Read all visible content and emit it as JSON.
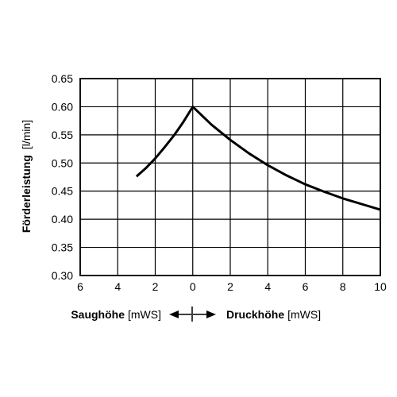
{
  "chart_data": {
    "type": "line",
    "ylabel_main": "Förderleistung",
    "ylabel_unit": "[l/min]",
    "ylim": [
      0.3,
      0.65
    ],
    "yticks": [
      0.3,
      0.35,
      0.4,
      0.45,
      0.5,
      0.55,
      0.6,
      0.65
    ],
    "ytick_labels": [
      "0.30",
      "0.35",
      "0.40",
      "0.45",
      "0.50",
      "0.55",
      "0.60",
      "0.65"
    ],
    "xlim": [
      -6,
      10
    ],
    "xticks": [
      -6,
      -4,
      -2,
      0,
      2,
      4,
      6,
      8,
      10
    ],
    "xtick_labels": [
      "6",
      "4",
      "2",
      "0",
      "2",
      "4",
      "6",
      "8",
      "10"
    ],
    "xlabel_left_bold": "Saughöhe",
    "xlabel_left_unit": "[mWS]",
    "xlabel_right_bold": "Druckhöhe",
    "xlabel_right_unit": "[mWS]",
    "grid": true,
    "series": [
      {
        "x": [
          -3.0,
          -2.5,
          -2.0,
          -1.5,
          -1.0,
          -0.5,
          0,
          1,
          2,
          3,
          4,
          5,
          6,
          7,
          8,
          9,
          10
        ],
        "y": [
          0.476,
          0.491,
          0.508,
          0.528,
          0.549,
          0.573,
          0.6,
          0.568,
          0.541,
          0.517,
          0.496,
          0.478,
          0.462,
          0.449,
          0.437,
          0.427,
          0.417
        ]
      }
    ]
  }
}
